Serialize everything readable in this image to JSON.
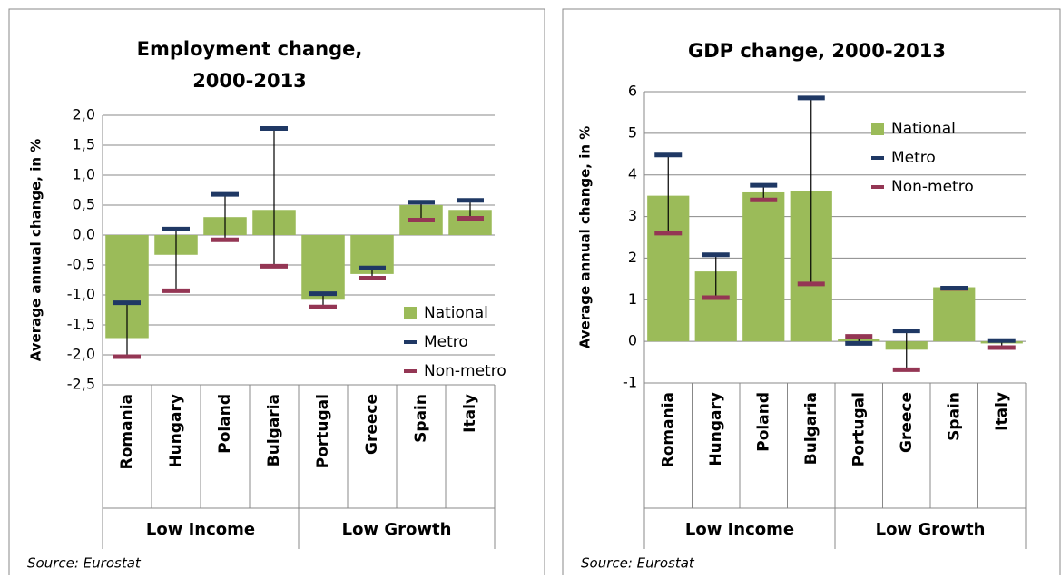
{
  "chart_data": [
    {
      "type": "bar",
      "title": [
        "Employment change,",
        "2000-2013"
      ],
      "y_label": "Average annual change, in %",
      "source": "Source:  Eurostat",
      "categories": [
        "Romania",
        "Hungary",
        "Poland",
        "Bulgaria",
        "Portugal",
        "Greece",
        "Spain",
        "Italy"
      ],
      "groups": [
        "Low Income",
        "Low Growth"
      ],
      "series": [
        {
          "name": "National",
          "style": "bar",
          "color": "#9bbb59",
          "values": [
            -1.72,
            -0.33,
            0.3,
            0.42,
            -1.08,
            -0.65,
            0.5,
            0.42
          ]
        },
        {
          "name": "Metro",
          "style": "marker",
          "color": "#1f3864",
          "values": [
            -1.13,
            0.1,
            0.68,
            1.78,
            -0.98,
            -0.55,
            0.55,
            0.58
          ]
        },
        {
          "name": "Non-metro",
          "style": "marker",
          "color": "#943654",
          "values": [
            -2.03,
            -0.93,
            -0.08,
            -0.52,
            -1.2,
            -0.72,
            0.25,
            0.28
          ]
        }
      ],
      "ylim": [
        -2.5,
        2.0
      ],
      "yticks": [
        {
          "value": 2.0,
          "label": "2,0"
        },
        {
          "value": 1.5,
          "label": "1,5"
        },
        {
          "value": 1.0,
          "label": "1,0"
        },
        {
          "value": 0.5,
          "label": "0,5"
        },
        {
          "value": 0.0,
          "label": "0,0"
        },
        {
          "value": -0.5,
          "label": "-0,5"
        },
        {
          "value": -1.0,
          "label": "-1,0"
        },
        {
          "value": -1.5,
          "label": "-1,5"
        },
        {
          "value": -2.0,
          "label": "-2,0"
        },
        {
          "value": -2.5,
          "label": "-2,5"
        }
      ],
      "grid": true,
      "legend": "lower right"
    },
    {
      "type": "bar",
      "title": [
        "GDP change, 2000-2013"
      ],
      "y_label": "Average annual change, in %",
      "source": "Source:  Eurostat",
      "categories": [
        "Romania",
        "Hungary",
        "Poland",
        "Bulgaria",
        "Portugal",
        "Greece",
        "Spain",
        "Italy"
      ],
      "groups": [
        "Low Income",
        "Low Growth"
      ],
      "series": [
        {
          "name": "National",
          "style": "bar",
          "color": "#9bbb59",
          "values": [
            3.5,
            1.68,
            3.58,
            3.62,
            0.05,
            -0.2,
            1.3,
            -0.05
          ]
        },
        {
          "name": "Metro",
          "style": "marker",
          "color": "#1f3864",
          "values": [
            4.48,
            2.08,
            3.75,
            5.85,
            -0.05,
            0.25,
            1.28,
            0.02
          ]
        },
        {
          "name": "Non-metro",
          "style": "marker",
          "color": "#943654",
          "values": [
            2.6,
            1.05,
            3.4,
            1.38,
            0.12,
            -0.68,
            1.27,
            -0.15
          ]
        }
      ],
      "ylim": [
        -1,
        6
      ],
      "yticks": [
        6,
        5,
        4,
        3,
        2,
        1,
        0,
        -1
      ],
      "grid": true,
      "legend": "upper right"
    }
  ]
}
